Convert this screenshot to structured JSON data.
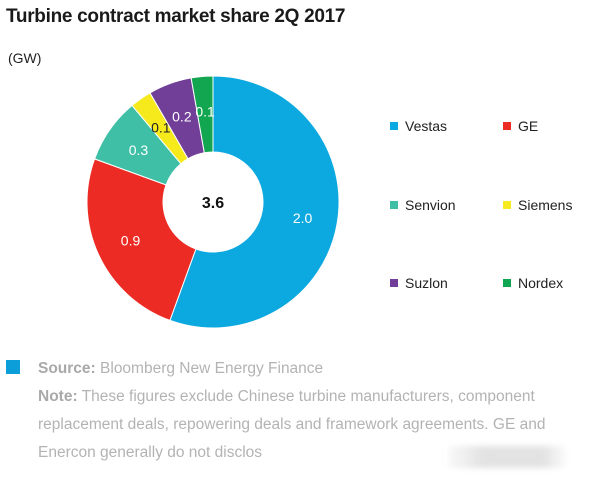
{
  "title": "Turbine contract market share 2Q 2017",
  "unit": "(GW)",
  "chart_data": {
    "type": "pie",
    "title": "Turbine contract market share 2Q 2017",
    "unit": "(GW)",
    "center_total": "3.6",
    "categories": [
      "Vestas",
      "GE",
      "Senvion",
      "Siemens",
      "Suzlon",
      "Nordex"
    ],
    "values": [
      2.0,
      0.9,
      0.3,
      0.1,
      0.2,
      0.1
    ],
    "labels": [
      "2.0",
      "0.9",
      "0.3",
      "0.1",
      "0.2",
      "0.1"
    ],
    "colors": [
      "#0ca8e0",
      "#ec2b25",
      "#40bfa7",
      "#f6e91c",
      "#713f97",
      "#12a651"
    ],
    "donut": true,
    "legend_placement": "right"
  },
  "legend": [
    {
      "label": "Vestas",
      "color": "#0ca8e0"
    },
    {
      "label": "GE",
      "color": "#ec2b25"
    },
    {
      "label": "Senvion",
      "color": "#40bfa7"
    },
    {
      "label": "Siemens",
      "color": "#f6e91c"
    },
    {
      "label": "Suzlon",
      "color": "#713f97"
    },
    {
      "label": "Nordex",
      "color": "#12a651"
    }
  ],
  "footer": {
    "source_label": "Source:",
    "source_text": "Bloomberg New Energy Finance",
    "note_label": "Note:",
    "note_text": "These figures exclude Chinese turbine manufacturers, component replacement deals, repowering deals and framework agreements. GE and Enercon generally do not disclos"
  }
}
